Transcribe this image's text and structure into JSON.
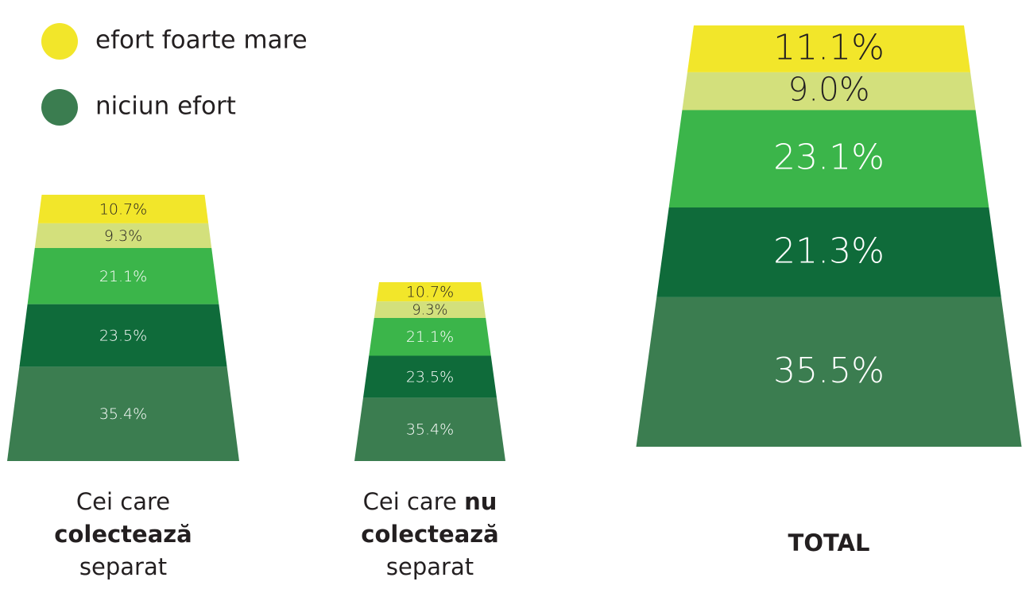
{
  "chart_data": {
    "type": "stacked_bucket",
    "category_lines": [
      [
        [
          {
            "text": "Cei care",
            "bold": false
          }
        ],
        [
          {
            "text": "colectează",
            "bold": true
          }
        ],
        [
          {
            "text": "separat",
            "bold": false
          }
        ]
      ],
      [
        [
          {
            "text": "Cei care ",
            "bold": false
          },
          {
            "text": "nu",
            "bold": true
          }
        ],
        [
          {
            "text": "colectează",
            "bold": true
          }
        ],
        [
          {
            "text": "separat",
            "bold": false
          }
        ]
      ],
      [
        [
          {
            "text": "TOTAL",
            "bold": true
          }
        ]
      ]
    ],
    "series": [
      {
        "name": "efort foarte mare",
        "color": "#f2e62a",
        "label_color": "#231f20",
        "values": [
          10.7,
          10.7,
          11.1
        ],
        "value_labels": [
          "10.7%",
          "10.7%",
          "11.1%"
        ]
      },
      {
        "color": "#d3e07c",
        "label_color": "#231f20",
        "values": [
          9.3,
          9.3,
          9.0
        ],
        "value_labels": [
          "9.3%",
          "9.3%",
          "9.0%"
        ]
      },
      {
        "color": "#3bb54a",
        "label_color": "#ffffff",
        "values": [
          21.1,
          21.1,
          23.1
        ],
        "value_labels": [
          "21.1%",
          "21.1%",
          "23.1%"
        ]
      },
      {
        "color": "#0f6b3a",
        "label_color": "#ffffff",
        "values": [
          23.5,
          23.5,
          21.3
        ],
        "value_labels": [
          "23.5%",
          "23.5%",
          "21.3%"
        ]
      },
      {
        "name": "niciun efort",
        "color": "#3b7d50",
        "label_color": "#ffffff",
        "values": [
          35.4,
          35.4,
          35.5
        ],
        "value_labels": [
          "35.4%",
          "35.4%",
          "35.5%"
        ]
      }
    ]
  }
}
